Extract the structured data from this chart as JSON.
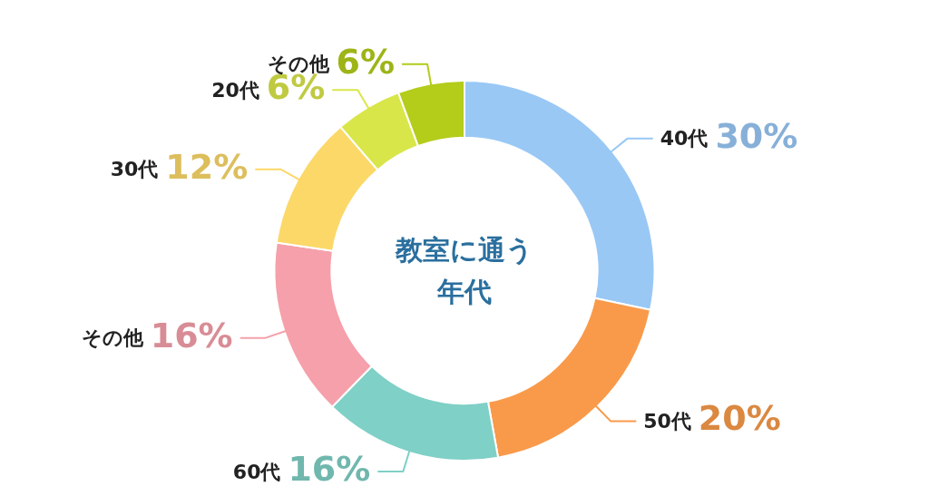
{
  "chart_data": {
    "type": "donut",
    "title": "教室に通う年代",
    "categories": [
      "40代",
      "50代",
      "60代",
      "その他",
      "30代",
      "20代",
      "その他"
    ],
    "values": [
      30,
      20,
      16,
      16,
      12,
      6,
      6
    ],
    "value_labels": [
      "30%",
      "20%",
      "16%",
      "16%",
      "12%",
      "6%",
      "6%"
    ],
    "colors": [
      "#99c8f5",
      "#f99a4a",
      "#7fd0c6",
      "#f5a0aa",
      "#fbd868",
      "#d9e64a",
      "#b4cc1a"
    ],
    "legend": false
  }
}
